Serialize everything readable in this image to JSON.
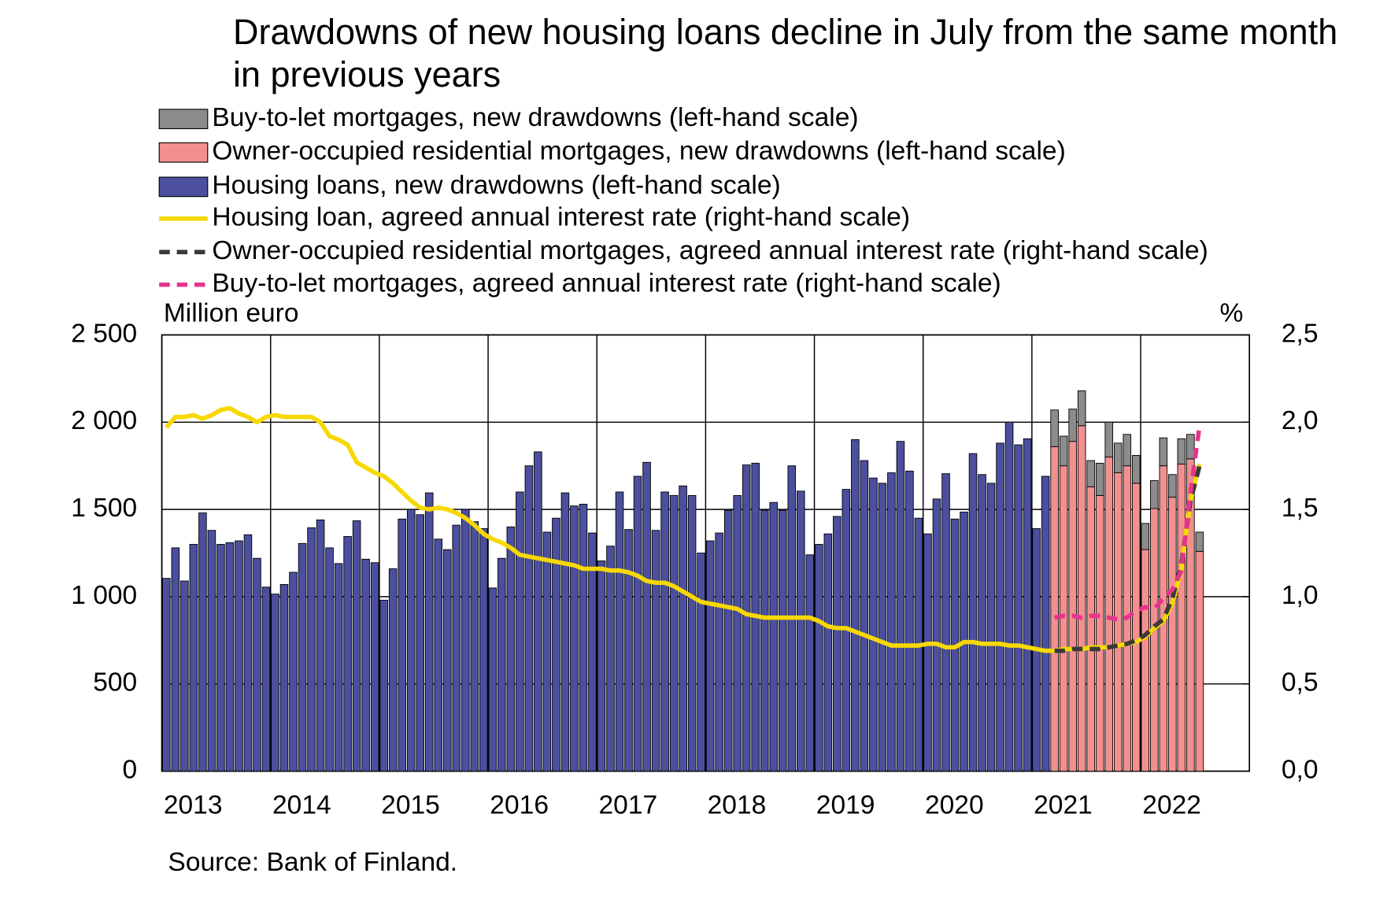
{
  "chart_data": {
    "type": "bar",
    "title": "Drawdowns of new housing loans decline in July from the same month in previous years",
    "y_label": "Million euro",
    "y2_label": "%",
    "source": "Source: Bank of Finland.",
    "ylim": [
      0,
      2500
    ],
    "yticks": [
      {
        "value": 0,
        "label": "0"
      },
      {
        "value": 500,
        "label": "500"
      },
      {
        "value": 1000,
        "label": "1 000"
      },
      {
        "value": 1500,
        "label": "1 500"
      },
      {
        "value": 2000,
        "label": "2 000"
      },
      {
        "value": 2500,
        "label": "2 500"
      }
    ],
    "y2lim": [
      0,
      2.5
    ],
    "y2ticks": [
      {
        "value": 0,
        "label": "0,0"
      },
      {
        "value": 0.5,
        "label": "0,5"
      },
      {
        "value": 1,
        "label": "1,0"
      },
      {
        "value": 1.5,
        "label": "1,5"
      },
      {
        "value": 2,
        "label": "2,0"
      },
      {
        "value": 2.5,
        "label": "2,5"
      }
    ],
    "grid": true,
    "categories": [
      "2013",
      null,
      null,
      null,
      null,
      null,
      null,
      null,
      null,
      null,
      null,
      null,
      "2014",
      null,
      null,
      null,
      null,
      null,
      null,
      null,
      null,
      null,
      null,
      null,
      "2015",
      null,
      null,
      null,
      null,
      null,
      null,
      null,
      null,
      null,
      null,
      null,
      "2016",
      null,
      null,
      null,
      null,
      null,
      null,
      null,
      null,
      null,
      null,
      null,
      "2017",
      null,
      null,
      null,
      null,
      null,
      null,
      null,
      null,
      null,
      null,
      null,
      "2018",
      null,
      null,
      null,
      null,
      null,
      null,
      null,
      null,
      null,
      null,
      null,
      "2019",
      null,
      null,
      null,
      null,
      null,
      null,
      null,
      null,
      null,
      null,
      null,
      "2020",
      null,
      null,
      null,
      null,
      null,
      null,
      null,
      null,
      null,
      null,
      null,
      "2021",
      null,
      null,
      null,
      null,
      null,
      null,
      null,
      null,
      null,
      null,
      null,
      "2022",
      null,
      null,
      null,
      null,
      null,
      null
    ],
    "series": [
      {
        "name": "Buy-to-let mortgages, new drawdowns (left-hand scale)",
        "type": "bar",
        "color": "#8c8c8c",
        "values": [
          null,
          null,
          null,
          null,
          null,
          null,
          null,
          null,
          null,
          null,
          null,
          null,
          null,
          null,
          null,
          null,
          null,
          null,
          null,
          null,
          null,
          null,
          null,
          null,
          null,
          null,
          null,
          null,
          null,
          null,
          null,
          null,
          null,
          null,
          null,
          null,
          null,
          null,
          null,
          null,
          null,
          null,
          null,
          null,
          null,
          null,
          null,
          null,
          null,
          null,
          null,
          null,
          null,
          null,
          null,
          null,
          null,
          null,
          null,
          null,
          null,
          null,
          null,
          null,
          null,
          null,
          null,
          null,
          null,
          null,
          null,
          null,
          null,
          null,
          null,
          null,
          null,
          null,
          null,
          null,
          null,
          null,
          null,
          null,
          null,
          null,
          null,
          null,
          null,
          null,
          null,
          null,
          null,
          null,
          null,
          null,
          null,
          null,
          210,
          170,
          185,
          200,
          150,
          185,
          200,
          170,
          180,
          160,
          150,
          160,
          160,
          130,
          145,
          140,
          110
        ]
      },
      {
        "name": "Owner-occupied residential mortgages, new drawdowns (left-hand scale)",
        "type": "bar",
        "color": "#f29090",
        "values": [
          null,
          null,
          null,
          null,
          null,
          null,
          null,
          null,
          null,
          null,
          null,
          null,
          null,
          null,
          null,
          null,
          null,
          null,
          null,
          null,
          null,
          null,
          null,
          null,
          null,
          null,
          null,
          null,
          null,
          null,
          null,
          null,
          null,
          null,
          null,
          null,
          null,
          null,
          null,
          null,
          null,
          null,
          null,
          null,
          null,
          null,
          null,
          null,
          null,
          null,
          null,
          null,
          null,
          null,
          null,
          null,
          null,
          null,
          null,
          null,
          null,
          null,
          null,
          null,
          null,
          null,
          null,
          null,
          null,
          null,
          null,
          null,
          null,
          null,
          null,
          null,
          null,
          null,
          null,
          null,
          null,
          null,
          null,
          null,
          null,
          null,
          null,
          null,
          null,
          null,
          null,
          null,
          null,
          null,
          null,
          null,
          null,
          null,
          1860,
          1750,
          1890,
          1980,
          1630,
          1580,
          1800,
          1710,
          1750,
          1650,
          1270,
          1505,
          1750,
          1570,
          1760,
          1790,
          1260
        ]
      },
      {
        "name": "Housing loans, new drawdowns (left-hand scale)",
        "type": "bar",
        "color": "#4b4f9e",
        "values": [
          1105,
          1280,
          1090,
          1300,
          1480,
          1380,
          1300,
          1310,
          1320,
          1355,
          1220,
          1055,
          1015,
          1070,
          1140,
          1305,
          1395,
          1440,
          1280,
          1190,
          1345,
          1435,
          1215,
          1195,
          980,
          1160,
          1445,
          1500,
          1470,
          1595,
          1330,
          1270,
          1410,
          1500,
          1430,
          1390,
          1050,
          1220,
          1400,
          1600,
          1750,
          1830,
          1370,
          1450,
          1595,
          1520,
          1530,
          1365,
          1205,
          1290,
          1600,
          1385,
          1690,
          1770,
          1380,
          1600,
          1580,
          1635,
          1580,
          1250,
          1320,
          1365,
          1495,
          1580,
          1755,
          1765,
          1495,
          1540,
          1495,
          1750,
          1605,
          1240,
          1300,
          1360,
          1460,
          1615,
          1900,
          1780,
          1680,
          1650,
          1710,
          1890,
          1720,
          1450,
          1360,
          1560,
          1705,
          1445,
          1485,
          1820,
          1700,
          1650,
          1880,
          2000,
          1870,
          1905,
          1390,
          1690,
          null,
          null,
          null,
          null,
          null,
          null,
          null,
          null,
          null,
          null,
          null,
          null,
          null,
          null,
          null,
          null,
          null
        ]
      },
      {
        "name": "Housing loan, agreed annual interest rate (right-hand scale)",
        "type": "line",
        "axis": "y2",
        "color": "#f7d800",
        "dashed": false,
        "values": [
          1.97,
          2.03,
          2.03,
          2.04,
          2.02,
          2.04,
          2.07,
          2.08,
          2.05,
          2.03,
          2.0,
          2.03,
          2.04,
          2.03,
          2.03,
          2.03,
          2.03,
          2.0,
          1.92,
          1.9,
          1.87,
          1.77,
          1.74,
          1.71,
          1.69,
          1.65,
          1.6,
          1.55,
          1.51,
          1.5,
          1.51,
          1.5,
          1.48,
          1.45,
          1.41,
          1.36,
          1.33,
          1.31,
          1.28,
          1.24,
          1.23,
          1.22,
          1.21,
          1.2,
          1.19,
          1.18,
          1.16,
          1.16,
          1.16,
          1.15,
          1.15,
          1.14,
          1.12,
          1.09,
          1.08,
          1.08,
          1.06,
          1.03,
          1.0,
          0.97,
          0.96,
          0.95,
          0.94,
          0.93,
          0.9,
          0.89,
          0.88,
          0.88,
          0.88,
          0.88,
          0.88,
          0.88,
          0.86,
          0.83,
          0.82,
          0.82,
          0.8,
          0.78,
          0.76,
          0.74,
          0.72,
          0.72,
          0.72,
          0.72,
          0.73,
          0.73,
          0.71,
          0.71,
          0.74,
          0.74,
          0.73,
          0.73,
          0.73,
          0.72,
          0.72,
          0.71,
          0.7,
          0.69,
          0.69,
          0.7,
          0.7,
          0.7,
          0.71,
          0.71,
          0.71,
          0.72,
          0.73,
          0.74,
          0.77,
          0.82,
          0.86,
          0.96,
          1.16,
          1.55,
          1.76
        ]
      },
      {
        "name": "Owner-occupied residential mortgages, agreed annual interest rate (right-hand scale)",
        "type": "line",
        "axis": "y2",
        "color": "#3a3a3a",
        "dashed": true,
        "values": [
          null,
          null,
          null,
          null,
          null,
          null,
          null,
          null,
          null,
          null,
          null,
          null,
          null,
          null,
          null,
          null,
          null,
          null,
          null,
          null,
          null,
          null,
          null,
          null,
          null,
          null,
          null,
          null,
          null,
          null,
          null,
          null,
          null,
          null,
          null,
          null,
          null,
          null,
          null,
          null,
          null,
          null,
          null,
          null,
          null,
          null,
          null,
          null,
          null,
          null,
          null,
          null,
          null,
          null,
          null,
          null,
          null,
          null,
          null,
          null,
          null,
          null,
          null,
          null,
          null,
          null,
          null,
          null,
          null,
          null,
          null,
          null,
          null,
          null,
          null,
          null,
          null,
          null,
          null,
          null,
          null,
          null,
          null,
          null,
          null,
          null,
          null,
          null,
          null,
          null,
          null,
          null,
          null,
          null,
          null,
          null,
          null,
          null,
          0.69,
          0.69,
          0.7,
          0.7,
          0.7,
          0.7,
          0.71,
          0.72,
          0.73,
          0.75,
          0.78,
          0.83,
          0.87,
          0.99,
          1.19,
          1.55,
          1.75
        ]
      },
      {
        "name": "Buy-to-let mortgages, agreed annual interest rate (right-hand scale)",
        "type": "line",
        "axis": "y2",
        "color": "#e6348c",
        "dashed": true,
        "values": [
          null,
          null,
          null,
          null,
          null,
          null,
          null,
          null,
          null,
          null,
          null,
          null,
          null,
          null,
          null,
          null,
          null,
          null,
          null,
          null,
          null,
          null,
          null,
          null,
          null,
          null,
          null,
          null,
          null,
          null,
          null,
          null,
          null,
          null,
          null,
          null,
          null,
          null,
          null,
          null,
          null,
          null,
          null,
          null,
          null,
          null,
          null,
          null,
          null,
          null,
          null,
          null,
          null,
          null,
          null,
          null,
          null,
          null,
          null,
          null,
          null,
          null,
          null,
          null,
          null,
          null,
          null,
          null,
          null,
          null,
          null,
          null,
          null,
          null,
          null,
          null,
          null,
          null,
          null,
          null,
          null,
          null,
          null,
          null,
          null,
          null,
          null,
          null,
          null,
          null,
          null,
          null,
          null,
          null,
          null,
          null,
          null,
          null,
          0.88,
          0.89,
          0.89,
          0.88,
          0.89,
          0.89,
          0.88,
          0.87,
          0.88,
          0.92,
          0.94,
          0.93,
          0.99,
          1.04,
          1.15,
          1.6,
          1.98
        ]
      }
    ]
  }
}
